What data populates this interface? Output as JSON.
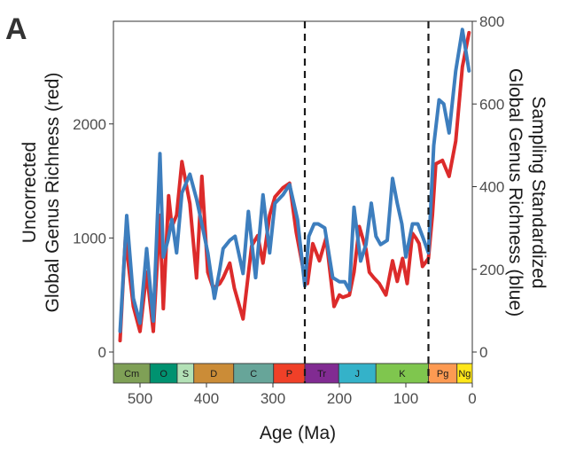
{
  "panel_label": "A",
  "chart_data": {
    "type": "line",
    "xlabel": "Age (Ma)",
    "ylabel_left_lines": [
      "Uncorrected",
      "Global Genus Richness (red)"
    ],
    "ylabel_right_lines": [
      "Sampling Standardized",
      "Global Genus Richness (blue)"
    ],
    "xlim": [
      540,
      0
    ],
    "ylim_left": [
      0,
      2900
    ],
    "ylim_right": [
      0,
      800
    ],
    "x_ticks": [
      500,
      400,
      300,
      200,
      100,
      0
    ],
    "y_ticks_left": [
      0,
      1000,
      2000
    ],
    "y_ticks_right": [
      0,
      200,
      400,
      600,
      800
    ],
    "grid": false,
    "vlines": [
      {
        "x": 252,
        "style": "dashed"
      },
      {
        "x": 66,
        "style": "dashed"
      }
    ],
    "series": [
      {
        "color": "#dc2b2b",
        "axis": "left",
        "x": [
          530,
          522,
          510,
          500,
          490,
          480,
          470,
          465,
          457,
          452,
          445,
          437,
          425,
          415,
          407,
          398,
          390,
          380,
          375,
          365,
          358,
          345,
          332,
          323,
          315,
          305,
          297,
          285,
          275,
          265,
          252,
          248,
          240,
          230,
          220,
          208,
          200,
          195,
          185,
          178,
          170,
          160,
          155,
          148,
          140,
          130,
          120,
          113,
          105,
          98,
          90,
          85,
          80,
          75,
          66,
          60,
          55,
          45,
          35,
          25,
          15,
          5
        ],
        "y": [
          100,
          1000,
          400,
          180,
          700,
          180,
          1200,
          380,
          1370,
          1100,
          1200,
          1670,
          1300,
          650,
          1540,
          700,
          560,
          600,
          650,
          780,
          560,
          290,
          930,
          1020,
          780,
          1200,
          1360,
          1440,
          1480,
          1050,
          650,
          600,
          950,
          800,
          1000,
          400,
          500,
          480,
          500,
          700,
          1100,
          900,
          700,
          650,
          600,
          500,
          800,
          620,
          820,
          600,
          1040,
          1000,
          950,
          750,
          820,
          1200,
          1650,
          1680,
          1540,
          1850,
          2500,
          2800
        ]
      },
      {
        "color": "#3d7ebe",
        "axis": "right",
        "x": [
          530,
          520,
          510,
          500,
          490,
          480,
          470,
          465,
          458,
          452,
          445,
          437,
          425,
          415,
          407,
          398,
          388,
          380,
          375,
          365,
          357,
          345,
          337,
          326,
          315,
          305,
          297,
          285,
          275,
          263,
          252,
          246,
          238,
          232,
          222,
          210,
          200,
          192,
          185,
          178,
          168,
          160,
          152,
          145,
          138,
          128,
          120,
          113,
          106,
          100,
          90,
          82,
          75,
          66,
          58,
          50,
          43,
          35,
          25,
          15,
          5
        ],
        "y": [
          50,
          330,
          130,
          70,
          250,
          75,
          480,
          230,
          270,
          320,
          240,
          385,
          430,
          370,
          310,
          240,
          130,
          200,
          250,
          270,
          280,
          190,
          340,
          180,
          380,
          240,
          360,
          380,
          405,
          320,
          160,
          280,
          310,
          310,
          300,
          180,
          170,
          170,
          150,
          350,
          220,
          260,
          360,
          280,
          260,
          270,
          420,
          360,
          310,
          230,
          310,
          310,
          280,
          240,
          500,
          610,
          600,
          530,
          680,
          780,
          680
        ]
      }
    ],
    "period_bar": [
      {
        "label": "Cm",
        "from": 541,
        "to": 485,
        "color": "#7fa056"
      },
      {
        "label": "O",
        "from": 485,
        "to": 444,
        "color": "#009270"
      },
      {
        "label": "S",
        "from": 444,
        "to": 419,
        "color": "#b3e1b6"
      },
      {
        "label": "D",
        "from": 419,
        "to": 359,
        "color": "#cb8c37"
      },
      {
        "label": "C",
        "from": 359,
        "to": 299,
        "color": "#67a599"
      },
      {
        "label": "P",
        "from": 299,
        "to": 252,
        "color": "#f04028"
      },
      {
        "label": "Tr",
        "from": 252,
        "to": 201,
        "color": "#812b92"
      },
      {
        "label": "J",
        "from": 201,
        "to": 145,
        "color": "#34b2c9"
      },
      {
        "label": "K",
        "from": 145,
        "to": 66,
        "color": "#7fc64e"
      },
      {
        "label": "Pg",
        "from": 66,
        "to": 23,
        "color": "#fd9a52"
      },
      {
        "label": "Ng",
        "from": 23,
        "to": 0,
        "color": "#ffe619"
      }
    ]
  }
}
